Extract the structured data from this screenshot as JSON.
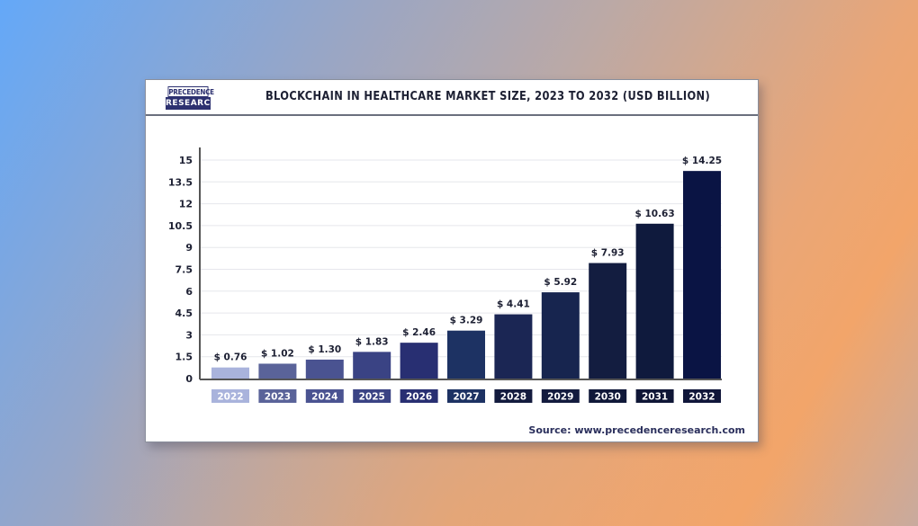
{
  "logo": {
    "line1": "PRECEDENCE",
    "line2": "RESEARCH"
  },
  "source": "Source: www.precedenceresearch.com",
  "colors": {
    "bars": [
      "#a9b3dc",
      "#5a6399",
      "#4a5391",
      "#3a4384",
      "#282f72",
      "#1d3263",
      "#1b2654",
      "#17254f",
      "#131d40",
      "#0f1a3d",
      "#0a1444"
    ],
    "label_boxes": [
      "#a9b3dc",
      "#5a6399",
      "#4a5391",
      "#3a4384",
      "#282f72",
      "#1d3263",
      "#131b3e",
      "#131b3e",
      "#101839",
      "#0f1636",
      "#10163a"
    ]
  },
  "chart_data": {
    "type": "bar",
    "title": "BLOCKCHAIN IN HEALTHCARE MARKET SIZE, 2023 TO 2032 (USD BILLION)",
    "xlabel": "",
    "ylabel": "",
    "categories": [
      "2022",
      "2023",
      "2024",
      "2025",
      "2026",
      "2027",
      "2028",
      "2029",
      "2030",
      "2031",
      "2032"
    ],
    "values": [
      0.76,
      1.02,
      1.3,
      1.83,
      2.46,
      3.29,
      4.41,
      5.92,
      7.93,
      10.63,
      14.25
    ],
    "data_labels": [
      "$ 0.76",
      "$ 1.02",
      "$ 1.30",
      "$ 1.83",
      "$ 2.46",
      "$ 3.29",
      "$ 4.41",
      "$ 5.92",
      "$ 7.93",
      "$ 10.63",
      "$ 14.25"
    ],
    "yticks": [
      "0",
      "1.5",
      "3",
      "4.5",
      "6",
      "7.5",
      "9",
      "10.5",
      "12",
      "13.5",
      "15"
    ],
    "ylim": [
      0,
      15
    ],
    "grid": true,
    "legend": "none"
  }
}
